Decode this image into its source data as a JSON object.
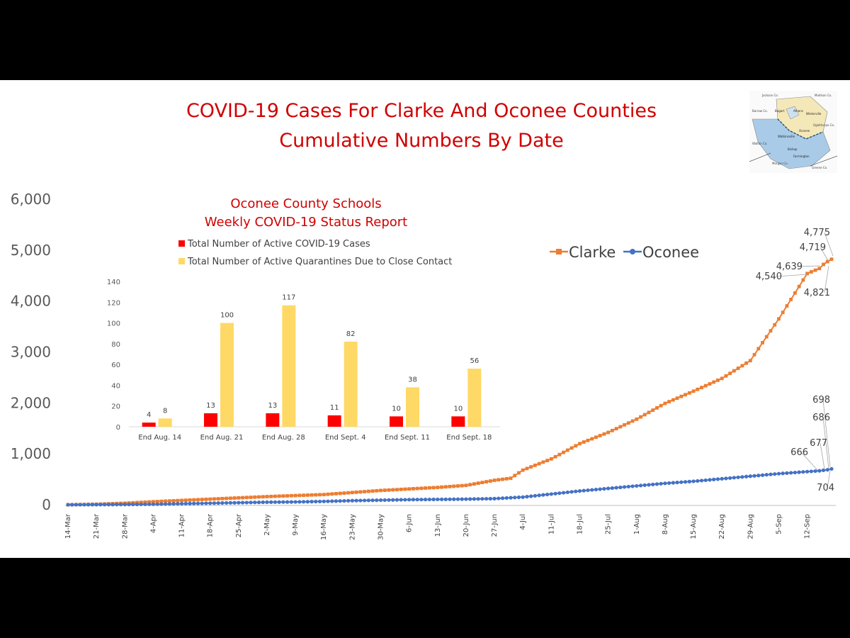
{
  "title_line1": "COVID-19 Cases For Clarke And Oconee Counties",
  "title_line2": "Cumulative Numbers By Date",
  "map_labels": [
    "Jackson Co.",
    "Madison Co.",
    "Barrow Co.",
    "Bogart",
    "Athens",
    "Winterville",
    "Walton Co.",
    "Oconee",
    "Watkinsville",
    "Bishop",
    "Farmington",
    "Morgan Co.",
    "Greene Co.",
    "Oglethorpe Co."
  ],
  "chart_data": [
    {
      "type": "line",
      "title": "",
      "xlabel": "",
      "ylabel": "",
      "x_start": "14-Mar",
      "x_end": "18-Sep",
      "x_ticks": [
        "14-Mar",
        "21-Mar",
        "28-Mar",
        "4-Apr",
        "11-Apr",
        "18-Apr",
        "25-Apr",
        "2-May",
        "9-May",
        "16-May",
        "23-May",
        "30-May",
        "6-Jun",
        "13-Jun",
        "20-Jun",
        "27-Jun",
        "4-Jul",
        "11-Jul",
        "18-Jul",
        "25-Jul",
        "1-Aug",
        "8-Aug",
        "15-Aug",
        "22-Aug",
        "29-Aug",
        "5-Sep",
        "12-Sep"
      ],
      "y_ticks": [
        "0",
        "1,000",
        "2,000",
        "3,000",
        "4,000",
        "5,000",
        "6,000"
      ],
      "ylim": [
        0,
        6000
      ],
      "legend_position": "top-right",
      "series": [
        {
          "name": "Clarke",
          "color": "#ed7d31",
          "points": [
            [
              "14-Mar",
              0
            ],
            [
              "21-Mar",
              10
            ],
            [
              "28-Mar",
              30
            ],
            [
              "4-Apr",
              60
            ],
            [
              "11-Apr",
              85
            ],
            [
              "18-Apr",
              110
            ],
            [
              "25-Apr",
              135
            ],
            [
              "2-May",
              160
            ],
            [
              "9-May",
              180
            ],
            [
              "16-May",
              200
            ],
            [
              "23-May",
              240
            ],
            [
              "30-May",
              280
            ],
            [
              "6-Jun",
              310
            ],
            [
              "13-Jun",
              340
            ],
            [
              "20-Jun",
              380
            ],
            [
              "27-Jun",
              480
            ],
            [
              "1-Jul",
              520
            ],
            [
              "4-Jul",
              680
            ],
            [
              "11-Jul",
              900
            ],
            [
              "18-Jul",
              1200
            ],
            [
              "25-Jul",
              1420
            ],
            [
              "1-Aug",
              1680
            ],
            [
              "8-Aug",
              1990
            ],
            [
              "15-Aug",
              2230
            ],
            [
              "22-Aug",
              2480
            ],
            [
              "29-Aug",
              2830
            ],
            [
              "5-Sep",
              3650
            ],
            [
              "12-Sep",
              4540
            ],
            [
              "15-Sep",
              4639
            ],
            [
              "16-Sep",
              4719
            ],
            [
              "17-Sep",
              4775
            ],
            [
              "18-Sep",
              4821
            ]
          ]
        },
        {
          "name": "Oconee",
          "color": "#4472c4",
          "points": [
            [
              "14-Mar",
              0
            ],
            [
              "21-Mar",
              2
            ],
            [
              "28-Mar",
              5
            ],
            [
              "4-Apr",
              10
            ],
            [
              "11-Apr",
              20
            ],
            [
              "18-Apr",
              30
            ],
            [
              "25-Apr",
              40
            ],
            [
              "2-May",
              50
            ],
            [
              "9-May",
              55
            ],
            [
              "16-May",
              65
            ],
            [
              "23-May",
              80
            ],
            [
              "30-May",
              90
            ],
            [
              "6-Jun",
              100
            ],
            [
              "13-Jun",
              105
            ],
            [
              "20-Jun",
              110
            ],
            [
              "27-Jun",
              120
            ],
            [
              "4-Jul",
              150
            ],
            [
              "11-Jul",
              210
            ],
            [
              "18-Jul",
              270
            ],
            [
              "25-Jul",
              320
            ],
            [
              "1-Aug",
              370
            ],
            [
              "8-Aug",
              420
            ],
            [
              "15-Aug",
              460
            ],
            [
              "22-Aug",
              510
            ],
            [
              "29-Aug",
              560
            ],
            [
              "5-Sep",
              610
            ],
            [
              "12-Sep",
              650
            ],
            [
              "15-Sep",
              666
            ],
            [
              "16-Sep",
              677
            ],
            [
              "17-Sep",
              686
            ],
            [
              "17.5-Sep",
              698
            ],
            [
              "18-Sep",
              704
            ]
          ]
        }
      ],
      "annotations": {
        "Clarke": [
          "4,775",
          "4,719",
          "4,639",
          "4,540",
          "4,821"
        ],
        "Oconee": [
          "698",
          "686",
          "677",
          "666",
          "704"
        ]
      }
    },
    {
      "type": "bar",
      "title": "Oconee County Schools",
      "subtitle": "Weekly COVID-19 Status Report",
      "xlabel": "",
      "ylabel": "",
      "categories": [
        "End Aug. 14",
        "End Aug. 21",
        "End Aug. 28",
        "End Sept. 4",
        "End Sept. 11",
        "End Sept. 18"
      ],
      "y_ticks": [
        "0",
        "20",
        "40",
        "60",
        "80",
        "100",
        "120",
        "140"
      ],
      "ylim": [
        0,
        140
      ],
      "legend_position": "top",
      "series": [
        {
          "name": "Total Number of Active COVID-19 Cases",
          "color": "#ff0000",
          "values": [
            4,
            13,
            13,
            11,
            10,
            10
          ]
        },
        {
          "name": "Total Number of Active Quarantines Due to Close Contact",
          "color": "#ffd966",
          "values": [
            8,
            100,
            117,
            82,
            38,
            56
          ]
        }
      ]
    }
  ]
}
